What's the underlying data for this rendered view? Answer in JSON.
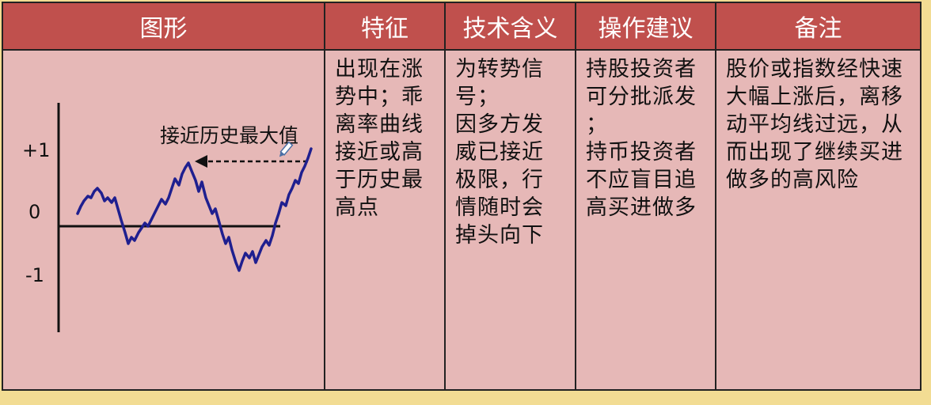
{
  "headers": {
    "shape": "图形",
    "feature": "特征",
    "meaning": "技术含义",
    "advice": "操作建议",
    "notes": "备注"
  },
  "cells": {
    "feature": "出现在涨\n势中；乖\n离率曲线\n接近或高\n于历史最\n高点",
    "meaning": "为转势信\n号；\n因多方发\n威已接近\n极限，行\n情随时会\n掉头向下",
    "advice": "持股投资者\n可分批派发\n；\n持币投资者\n不应盲目追\n高买进做多",
    "notes": "股价或指数经快速\n大幅上涨后，离移\n动平均线过远，从\n而出现了继续买进\n做多的高风险"
  },
  "chart_data": {
    "type": "line",
    "y_tick_labels": [
      "+1",
      "0",
      "-1"
    ],
    "annotation": "接近历史最大值",
    "colors": {
      "line": "#1f1f8f",
      "axis": "#111111"
    }
  },
  "colors": {
    "header_bg": "#c0504d",
    "cell_bg": "#e6b8b7",
    "page_bg": "#f2dc93"
  }
}
